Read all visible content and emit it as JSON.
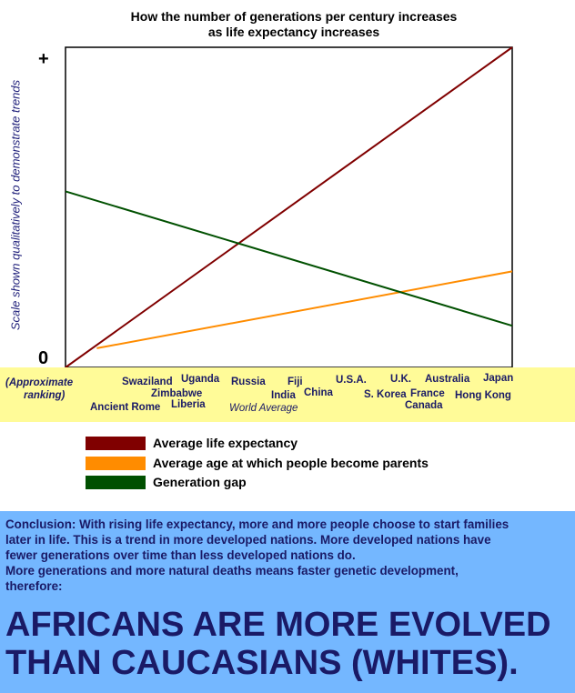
{
  "chart_data": {
    "type": "line",
    "title_lines": [
      "How the number of generations per century increases",
      "as life expectancy increases"
    ],
    "ylabel": "Scale shown qualitatively to demonstrate trends",
    "yticks": {
      "top": "+",
      "bottom": "0"
    },
    "x_ranking_note": "(Approximate ranking)",
    "x_note": "World Average",
    "x_categories": [
      "Ancient Rome",
      "Swaziland",
      "Zimbabwe",
      "Uganda",
      "Liberia",
      "Russia",
      "India",
      "Fiji",
      "China",
      "U.S.A.",
      "S. Korea",
      "U.K.",
      "France",
      "Canada",
      "Australia",
      "Hong Kong",
      "Japan"
    ],
    "series": [
      {
        "name": "Average life expectancy",
        "color": "#800000",
        "x": [
          0,
          1
        ],
        "y": [
          0,
          1.0
        ]
      },
      {
        "name": "Average age at which people become parents",
        "color": "#ff8c00",
        "x": [
          0.07,
          1
        ],
        "y": [
          0.06,
          0.3
        ]
      },
      {
        "name": "Generation gap",
        "color": "#005000",
        "x": [
          0,
          1
        ],
        "y": [
          0.55,
          0.13
        ]
      }
    ],
    "xlim": [
      0,
      1
    ],
    "ylim": [
      0,
      1
    ],
    "grid": false,
    "legend_position": "below"
  },
  "conclusion": {
    "lines": [
      "Conclusion: With rising life expectancy, more and more people choose to start families",
      "later in life. This is a trend in more developed nations. More developed nations have",
      "fewer generations over time than less developed nations do.",
      "More generations and more natural deaths means faster genetic development,",
      "therefore:"
    ],
    "headline": [
      "AFRICANS ARE MORE EVOLVED",
      "THAN CAUCASIANS (WHITES)."
    ]
  }
}
